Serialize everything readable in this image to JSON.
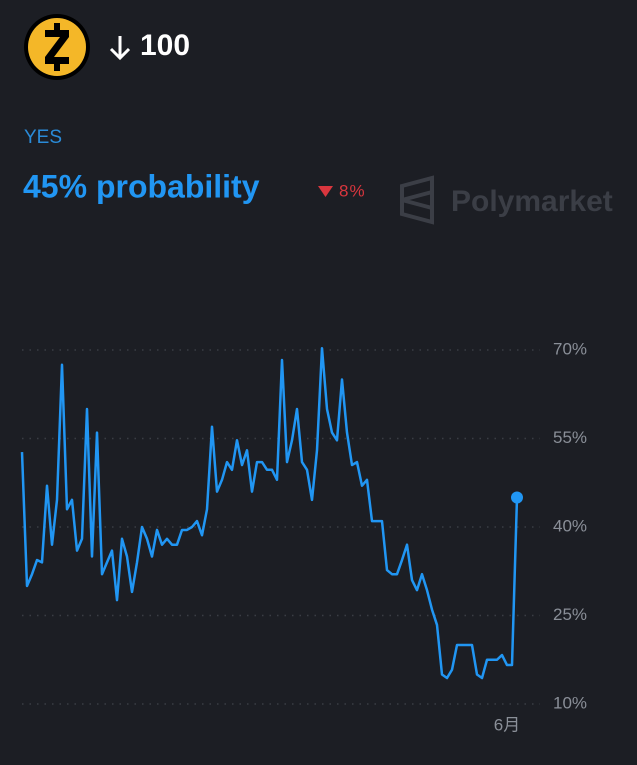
{
  "header": {
    "amount": "100"
  },
  "outcome": "YES",
  "probability": "45% probability",
  "change": "8%",
  "watermark": "Polymarket",
  "chart_data": {
    "type": "line",
    "categories": [
      null,
      null,
      null,
      null,
      null,
      null,
      null,
      null,
      null,
      null,
      null,
      null,
      null,
      null,
      null,
      null,
      null,
      null,
      null,
      null,
      null,
      null,
      null,
      null,
      null,
      null,
      null,
      null,
      null,
      null,
      null,
      null,
      null,
      null,
      null,
      null,
      null,
      null,
      null,
      null,
      null,
      null,
      null,
      null,
      null,
      null,
      null,
      null,
      null,
      null,
      null,
      null,
      null,
      null,
      null,
      null,
      null,
      null,
      null,
      null,
      null,
      null,
      null,
      null,
      null,
      null,
      null,
      null,
      null,
      null,
      null,
      null,
      null,
      null,
      null,
      null,
      null,
      null,
      null,
      null,
      null,
      null,
      null,
      null,
      null,
      null,
      null,
      null,
      null,
      null,
      null,
      null,
      null,
      null,
      null,
      null,
      null,
      "6月",
      null,
      null
    ],
    "values": [
      52.7,
      30,
      32,
      34.4,
      34,
      47,
      37,
      44.6,
      67.5,
      43,
      44.6,
      36,
      38,
      60,
      35,
      56,
      32,
      34,
      36,
      27.6,
      38,
      35,
      29,
      34,
      40,
      38,
      35,
      39.5,
      37,
      38,
      37,
      37,
      39.5,
      39.5,
      40,
      41,
      38.6,
      43,
      57,
      46,
      48,
      51,
      49.7,
      54.7,
      50.5,
      53,
      46,
      51,
      51,
      49.7,
      49.7,
      48,
      68.3,
      51,
      54.7,
      60,
      51,
      49.7,
      44.6,
      53,
      70.3,
      60,
      56,
      54.7,
      65,
      56,
      50.5,
      51,
      47,
      48,
      41,
      41,
      41,
      32.7,
      32,
      32,
      34.4,
      37,
      31,
      29.3,
      32,
      29.3,
      26,
      23.4,
      15,
      14.4,
      15.8,
      20,
      20,
      20,
      20,
      15,
      14.4,
      17.5,
      17.5,
      17.5,
      18.3,
      16.6,
      16.6,
      45
    ],
    "color": "#2196f3",
    "ylim": [
      10,
      70
    ],
    "yticks": [
      {
        "value": 10,
        "label": "10%"
      },
      {
        "value": 25,
        "label": "25%"
      },
      {
        "value": 40,
        "label": "40%"
      },
      {
        "value": 55,
        "label": "55%"
      },
      {
        "value": 70,
        "label": "70%"
      }
    ],
    "grid": true
  }
}
